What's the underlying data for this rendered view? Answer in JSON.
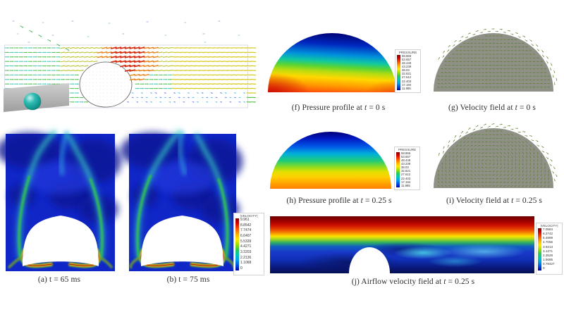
{
  "figure_captions": {
    "a": "(a) t = 65 ms",
    "b": "(b) t = 75 ms",
    "f": {
      "pre": "(f) Pressure profile at",
      "var": "t",
      "post": "= 0 s"
    },
    "g": {
      "pre": "(g) Velocity field at",
      "var": "t",
      "post": "= 0 s"
    },
    "h": {
      "pre": "(h) Pressure profile at",
      "var": "t",
      "post": "= 0.25 s"
    },
    "i": {
      "pre": "(i) Velocity field at",
      "var": "t",
      "post": "= 0.25 s"
    },
    "j": {
      "pre": "(j) Airflow velocity field at",
      "var": "t",
      "post": "= 0.25 s"
    }
  },
  "colorbars": {
    "pressure": {
      "title": "PRESSURE",
      "ticks": [
        "58.866",
        "53.657",
        "48.448",
        "43.239",
        "38.03",
        "32.821",
        "27.612",
        "22.403",
        "17.194",
        "11.985"
      ]
    },
    "velocity_ab": {
      "title": "|VELOCITY|",
      "ticks": [
        "9.961",
        "8.8542",
        "7.7474",
        "6.6407",
        "5.5339",
        "4.4271",
        "3.3203",
        "2.2136",
        "1.1068",
        "0"
      ]
    },
    "velocity_j": {
      "title": "|VELOCITY|",
      "ticks": [
        "7.0584",
        "6.2742",
        "5.4899",
        "4.7056",
        "3.9213",
        "3.1371",
        "2.3528",
        "1.5685",
        "0.78427",
        "0"
      ]
    }
  },
  "colors": {
    "vector_green": "#5a7d28",
    "dome_gray": "#8f9186",
    "sphere_teal": "#2fbdb4",
    "contour_blue": "#1126c6"
  }
}
